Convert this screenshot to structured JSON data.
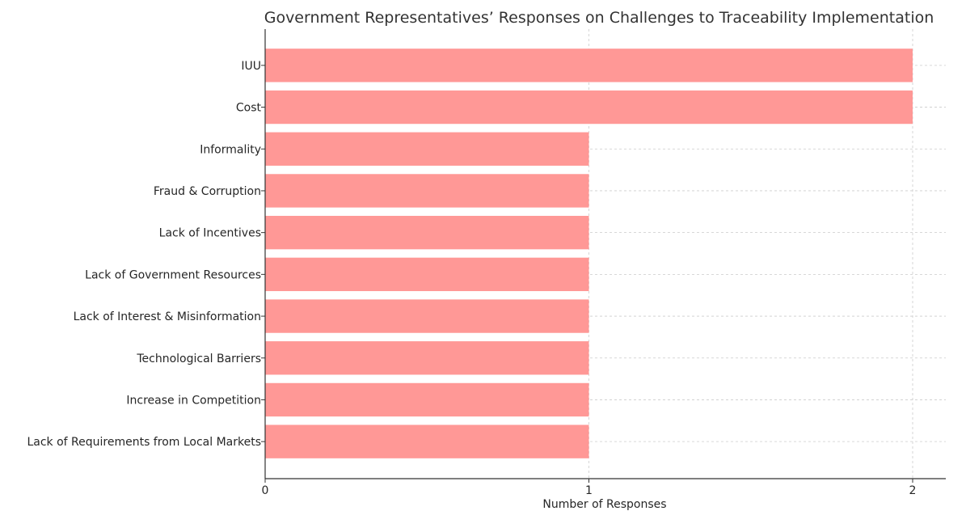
{
  "chart_data": {
    "type": "bar",
    "orientation": "horizontal",
    "title": "Government Representatives’ Responses on Challenges to Traceability Implementation",
    "xlabel": "Number of Responses",
    "ylabel": "",
    "categories": [
      "IUU",
      "Cost",
      "Informality",
      "Fraud & Corruption",
      "Lack of Incentives",
      "Lack of Government Resources",
      "Lack of Interest & Misinformation",
      "Technological Barriers",
      "Increase in Competition",
      "Lack of Requirements from Local Markets"
    ],
    "values": [
      2,
      2,
      1,
      1,
      1,
      1,
      1,
      1,
      1,
      1
    ],
    "xticks": [
      "0",
      "1",
      "2"
    ],
    "xlim": [
      0,
      2.1
    ],
    "grid": true,
    "bar_color": "#ff9896"
  }
}
